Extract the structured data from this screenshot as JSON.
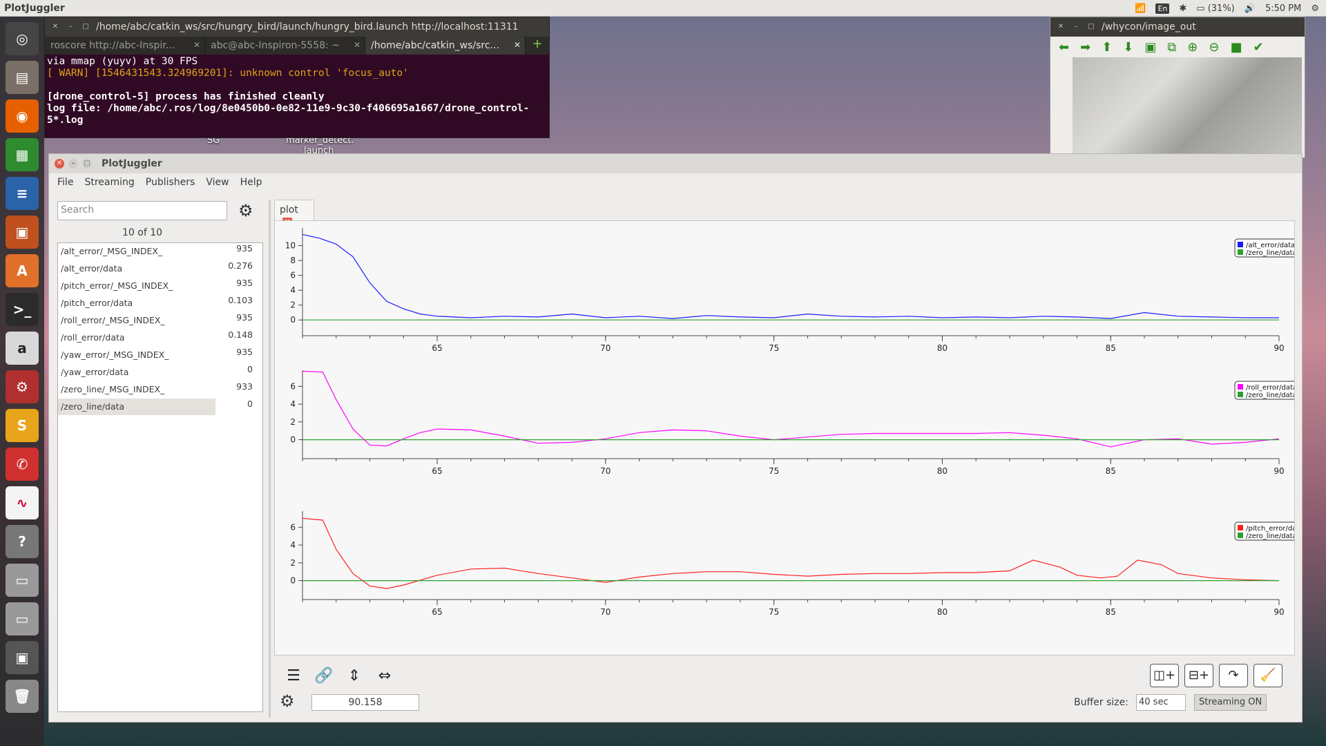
{
  "top_panel": {
    "app_title": "PlotJuggler",
    "lang": "En",
    "battery": "(31%)",
    "time": "5:50 PM"
  },
  "terminal": {
    "title": "/home/abc/catkin_ws/src/hungry_bird/launch/hungry_bird.launch http://localhost:11311",
    "tabs": [
      "roscore http://abc-Inspir...",
      "abc@abc-Inspiron-5558: ~",
      "/home/abc/catkin_ws/src..."
    ],
    "lines": [
      "via mmap (yuyv) at 30 FPS",
      "[ WARN] [1546431543.324969201]: unknown control 'focus_auto'",
      "",
      "[drone_control-5] process has finished cleanly",
      "log file: /home/abc/.ros/log/8e0450b0-0e82-11e9-9c30-f406695a1667/drone_control-",
      "5*.log"
    ]
  },
  "camera_window": {
    "title": "/whycon/image_out"
  },
  "desktop": {
    "labels": [
      "SG",
      "marker_detect.",
      "launch"
    ]
  },
  "plotjuggler": {
    "title": "PlotJuggler",
    "menu": [
      "File",
      "Streaming",
      "Publishers",
      "View",
      "Help"
    ],
    "search_placeholder": "Search",
    "count": "10 of 10",
    "topics": [
      {
        "name": "/alt_error/_MSG_INDEX_",
        "value": "935"
      },
      {
        "name": "/alt_error/data",
        "value": "0.276"
      },
      {
        "name": "/pitch_error/_MSG_INDEX_",
        "value": "935"
      },
      {
        "name": "/pitch_error/data",
        "value": "0.103"
      },
      {
        "name": "/roll_error/_MSG_INDEX_",
        "value": "935"
      },
      {
        "name": "/roll_error/data",
        "value": "0.148"
      },
      {
        "name": "/yaw_error/_MSG_INDEX_",
        "value": "935"
      },
      {
        "name": "/yaw_error/data",
        "value": "0"
      },
      {
        "name": "/zero_line/_MSG_INDEX_",
        "value": "933"
      },
      {
        "name": "/zero_line/data",
        "value": "0"
      }
    ],
    "tab_label": "plot",
    "time_value": "90.158",
    "buffer_label": "Buffer size:",
    "buffer_value": "40 sec",
    "streaming_label": "Streaming ON"
  },
  "chart_data": [
    {
      "type": "line",
      "xlim": [
        61,
        90
      ],
      "ylim": [
        -1,
        12
      ],
      "yticks": [
        0,
        2,
        4,
        6,
        8,
        10
      ],
      "xticks": [
        65,
        70,
        75,
        80,
        85,
        90
      ],
      "legend": "top-right",
      "series": [
        {
          "name": "/alt_error/data",
          "color": "#1a1aff",
          "x": [
            61,
            61.5,
            62,
            62.5,
            63,
            63.5,
            64,
            64.5,
            65,
            66,
            67,
            68,
            69,
            70,
            71,
            72,
            73,
            74,
            75,
            76,
            77,
            78,
            79,
            80,
            81,
            82,
            83,
            84,
            85,
            86,
            87,
            88,
            89,
            90
          ],
          "y": [
            11.5,
            11,
            10.2,
            8.5,
            5,
            2.5,
            1.5,
            0.8,
            0.5,
            0.3,
            0.5,
            0.4,
            0.8,
            0.3,
            0.5,
            0.2,
            0.6,
            0.4,
            0.3,
            0.8,
            0.5,
            0.4,
            0.5,
            0.3,
            0.4,
            0.3,
            0.5,
            0.4,
            0.2,
            1.0,
            0.5,
            0.4,
            0.3,
            0.3
          ]
        },
        {
          "name": "/zero_line/data",
          "color": "#2ca02c",
          "x": [
            61,
            90
          ],
          "y": [
            0,
            0
          ]
        }
      ]
    },
    {
      "type": "line",
      "xlim": [
        61,
        90
      ],
      "ylim": [
        -1.2,
        7.5
      ],
      "yticks": [
        0,
        2,
        4,
        6
      ],
      "xticks": [
        65,
        70,
        75,
        80,
        85,
        90
      ],
      "legend": "top-right",
      "series": [
        {
          "name": "/roll_error/data",
          "color": "#ff00ff",
          "x": [
            61,
            61.6,
            62,
            62.5,
            63,
            63.5,
            64,
            64.5,
            65,
            66,
            67,
            68,
            69,
            70,
            71,
            72,
            73,
            74,
            75,
            76,
            77,
            78,
            79,
            80,
            81,
            82,
            83,
            84,
            85,
            86,
            87,
            88,
            89,
            90
          ],
          "y": [
            7.7,
            7.6,
            4.5,
            1.2,
            -0.6,
            -0.7,
            0.1,
            0.8,
            1.2,
            1.1,
            0.4,
            -0.4,
            -0.3,
            0.1,
            0.8,
            1.1,
            1.0,
            0.4,
            0,
            0.3,
            0.6,
            0.7,
            0.7,
            0.7,
            0.7,
            0.8,
            0.5,
            0.1,
            -0.8,
            0,
            0.1,
            -0.5,
            -0.3,
            0.1
          ]
        },
        {
          "name": "/zero_line/data",
          "color": "#2ca02c",
          "x": [
            61,
            90
          ],
          "y": [
            0,
            0
          ]
        }
      ]
    },
    {
      "type": "line",
      "xlim": [
        61,
        90
      ],
      "ylim": [
        -1.2,
        7.5
      ],
      "yticks": [
        0,
        2,
        4,
        6
      ],
      "xticks": [
        65,
        70,
        75,
        80,
        85,
        90
      ],
      "legend": "top-right",
      "series": [
        {
          "name": "/pitch_error/data",
          "color": "#ff2020",
          "x": [
            61,
            61.6,
            62,
            62.5,
            63,
            63.5,
            64,
            65,
            66,
            67,
            68,
            69,
            70,
            71,
            72,
            73,
            74,
            75,
            76,
            77,
            78,
            79,
            80,
            81,
            82,
            82.7,
            83.5,
            84,
            84.7,
            85.2,
            85.8,
            86.5,
            87,
            88,
            89,
            90
          ],
          "y": [
            7.0,
            6.8,
            3.5,
            0.8,
            -0.6,
            -0.9,
            -0.5,
            0.6,
            1.3,
            1.4,
            0.8,
            0.3,
            -0.2,
            0.4,
            0.8,
            1.0,
            1.0,
            0.7,
            0.5,
            0.7,
            0.8,
            0.8,
            0.9,
            0.9,
            1.1,
            2.3,
            1.5,
            0.6,
            0.3,
            0.5,
            2.3,
            1.8,
            0.8,
            0.3,
            0.1,
            0
          ]
        },
        {
          "name": "/zero_line/data",
          "color": "#2ca02c",
          "x": [
            61,
            90
          ],
          "y": [
            0,
            0
          ]
        }
      ]
    }
  ]
}
